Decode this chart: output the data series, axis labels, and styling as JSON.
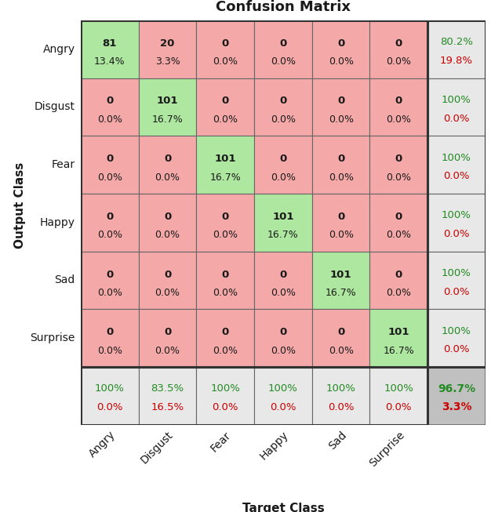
{
  "title": "Confusion Matrix",
  "xlabel": "Target Class",
  "ylabel": "Output Class",
  "classes": [
    "Angry",
    "Disgust",
    "Fear",
    "Happy",
    "Sad",
    "Surprise"
  ],
  "matrix": [
    [
      81,
      20,
      0,
      0,
      0,
      0
    ],
    [
      0,
      101,
      0,
      0,
      0,
      0
    ],
    [
      0,
      0,
      101,
      0,
      0,
      0
    ],
    [
      0,
      0,
      0,
      101,
      0,
      0
    ],
    [
      0,
      0,
      0,
      0,
      101,
      0
    ],
    [
      0,
      0,
      0,
      0,
      0,
      101
    ]
  ],
  "matrix_pct": [
    [
      13.4,
      3.3,
      0.0,
      0.0,
      0.0,
      0.0
    ],
    [
      0.0,
      16.7,
      0.0,
      0.0,
      0.0,
      0.0
    ],
    [
      0.0,
      0.0,
      16.7,
      0.0,
      0.0,
      0.0
    ],
    [
      0.0,
      0.0,
      0.0,
      16.7,
      0.0,
      0.0
    ],
    [
      0.0,
      0.0,
      0.0,
      0.0,
      16.7,
      0.0
    ],
    [
      0.0,
      0.0,
      0.0,
      0.0,
      0.0,
      16.7
    ]
  ],
  "row_summary": [
    [
      "80.2%",
      "19.8%"
    ],
    [
      "100%",
      "0.0%"
    ],
    [
      "100%",
      "0.0%"
    ],
    [
      "100%",
      "0.0%"
    ],
    [
      "100%",
      "0.0%"
    ],
    [
      "100%",
      "0.0%"
    ]
  ],
  "col_summary": [
    [
      "100%",
      "0.0%"
    ],
    [
      "83.5%",
      "16.5%"
    ],
    [
      "100%",
      "0.0%"
    ],
    [
      "100%",
      "0.0%"
    ],
    [
      "100%",
      "0.0%"
    ],
    [
      "100%",
      "0.0%"
    ]
  ],
  "overall_summary": [
    "96.7%",
    "3.3%"
  ],
  "color_diag": "#aee8a0",
  "color_offdiag": "#f4a9a8",
  "color_summary_bg_light": "#e8e8e8",
  "color_summary_bg_dark": "#c0c0c0",
  "color_green_text": "#228B22",
  "color_red_text": "#cc0000",
  "color_dark_text": "#1a1a1a",
  "title_fontsize": 13,
  "label_fontsize": 10,
  "cell_fontsize": 9.5,
  "summary_fontsize": 9.5
}
